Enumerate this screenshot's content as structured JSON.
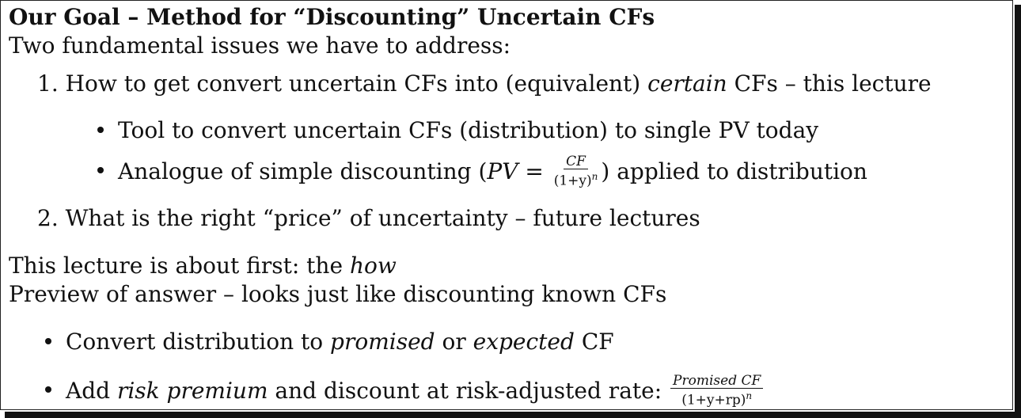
{
  "title": "Our Goal – Method for “Discounting” Uncertain CFs",
  "intro": "Two fundamental issues we have to address:",
  "items": [
    {
      "num": "1.",
      "pre": "How to get convert uncertain CFs into (equivalent) ",
      "em": "certain",
      "post": " CFs – this lecture",
      "bullets": [
        {
          "text": "Tool to convert uncertain CFs (distribution) to single PV today"
        },
        {
          "pre": "Analogue of simple discounting (",
          "formula_lhs": "PV =",
          "frac_num": "CF",
          "frac_den": "(1+y)",
          "frac_den_exp": "n",
          "post": ") applied to distribution"
        }
      ]
    },
    {
      "num": "2.",
      "text": "What is the right “price” of uncertainty – future lectures"
    }
  ],
  "this_lecture": {
    "pre": "This lecture is about first: the ",
    "em": "how"
  },
  "preview": "Preview of answer – looks just like discounting known CFs",
  "bullets2": [
    {
      "pre": "Convert distribution to ",
      "em1": "promised",
      "mid": " or ",
      "em2": "expected",
      "post": " CF"
    },
    {
      "pre": "Add ",
      "em": "risk premium",
      "post": " and discount at risk-adjusted rate: ",
      "frac_num": "Promised CF",
      "frac_den": "(1+y+rp)",
      "frac_den_exp": "n"
    }
  ]
}
